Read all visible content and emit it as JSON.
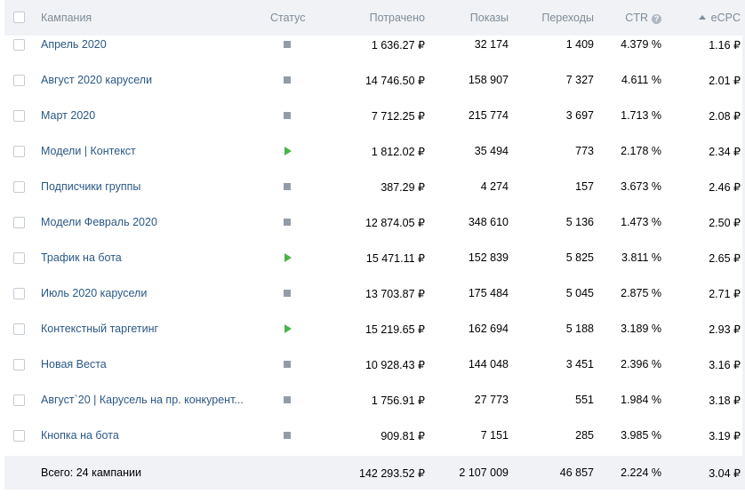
{
  "header": {
    "campaign": "Кампания",
    "status": "Статус",
    "spent": "Потрачено",
    "views": "Показы",
    "clicks": "Переходы",
    "ctr": "CTR",
    "ecpc": "eCPC",
    "info_glyph": "?"
  },
  "rows": [
    {
      "name": "Апрель 2020",
      "status": "stopped",
      "spent": "1 636.27 ₽",
      "views": "32 174",
      "clicks": "1 409",
      "ctr": "4.379 %",
      "ecpc": "1.16 ₽"
    },
    {
      "name": "Август 2020 карусели",
      "status": "stopped",
      "spent": "14 746.50 ₽",
      "views": "158 907",
      "clicks": "7 327",
      "ctr": "4.611 %",
      "ecpc": "2.01 ₽"
    },
    {
      "name": "Март 2020",
      "status": "stopped",
      "spent": "7 712.25 ₽",
      "views": "215 774",
      "clicks": "3 697",
      "ctr": "1.713 %",
      "ecpc": "2.08 ₽"
    },
    {
      "name": "Модели | Контекст",
      "status": "running",
      "spent": "1 812.02 ₽",
      "views": "35 494",
      "clicks": "773",
      "ctr": "2.178 %",
      "ecpc": "2.34 ₽"
    },
    {
      "name": "Подписчики группы",
      "status": "stopped",
      "spent": "387.29 ₽",
      "views": "4 274",
      "clicks": "157",
      "ctr": "3.673 %",
      "ecpc": "2.46 ₽"
    },
    {
      "name": "Модели Февраль 2020",
      "status": "stopped",
      "spent": "12 874.05 ₽",
      "views": "348 610",
      "clicks": "5 136",
      "ctr": "1.473 %",
      "ecpc": "2.50 ₽"
    },
    {
      "name": "Трафик на бота",
      "status": "running",
      "spent": "15 471.11 ₽",
      "views": "152 839",
      "clicks": "5 825",
      "ctr": "3.811 %",
      "ecpc": "2.65 ₽"
    },
    {
      "name": "Июль 2020 карусели",
      "status": "stopped",
      "spent": "13 703.87 ₽",
      "views": "175 484",
      "clicks": "5 045",
      "ctr": "2.875 %",
      "ecpc": "2.71 ₽"
    },
    {
      "name": "Контекстный таргетинг",
      "status": "running",
      "spent": "15 219.65 ₽",
      "views": "162 694",
      "clicks": "5 188",
      "ctr": "3.189 %",
      "ecpc": "2.93 ₽"
    },
    {
      "name": "Новая Веста",
      "status": "stopped",
      "spent": "10 928.43 ₽",
      "views": "144 048",
      "clicks": "3 451",
      "ctr": "2.396 %",
      "ecpc": "3.16 ₽"
    },
    {
      "name": "Август`20 | Карусель на пр. конкурент...",
      "status": "stopped",
      "spent": "1 756.91 ₽",
      "views": "27 773",
      "clicks": "551",
      "ctr": "1.984 %",
      "ecpc": "3.18 ₽"
    },
    {
      "name": "Кнопка на бота",
      "status": "stopped",
      "spent": "909.81 ₽",
      "views": "7 151",
      "clicks": "285",
      "ctr": "3.985 %",
      "ecpc": "3.19 ₽"
    }
  ],
  "footer": {
    "label": "Всего: 24 кампании",
    "spent": "142 293.52 ₽",
    "views": "2 107 009",
    "clicks": "46 857",
    "ctr": "2.224 %",
    "ecpc": "3.04 ₽"
  },
  "colors": {
    "link": "#2a5885",
    "header_bg": "#f0f2f5",
    "header_text": "#818c99",
    "status_running": "#4bb34b",
    "status_stopped": "#939ca6"
  }
}
